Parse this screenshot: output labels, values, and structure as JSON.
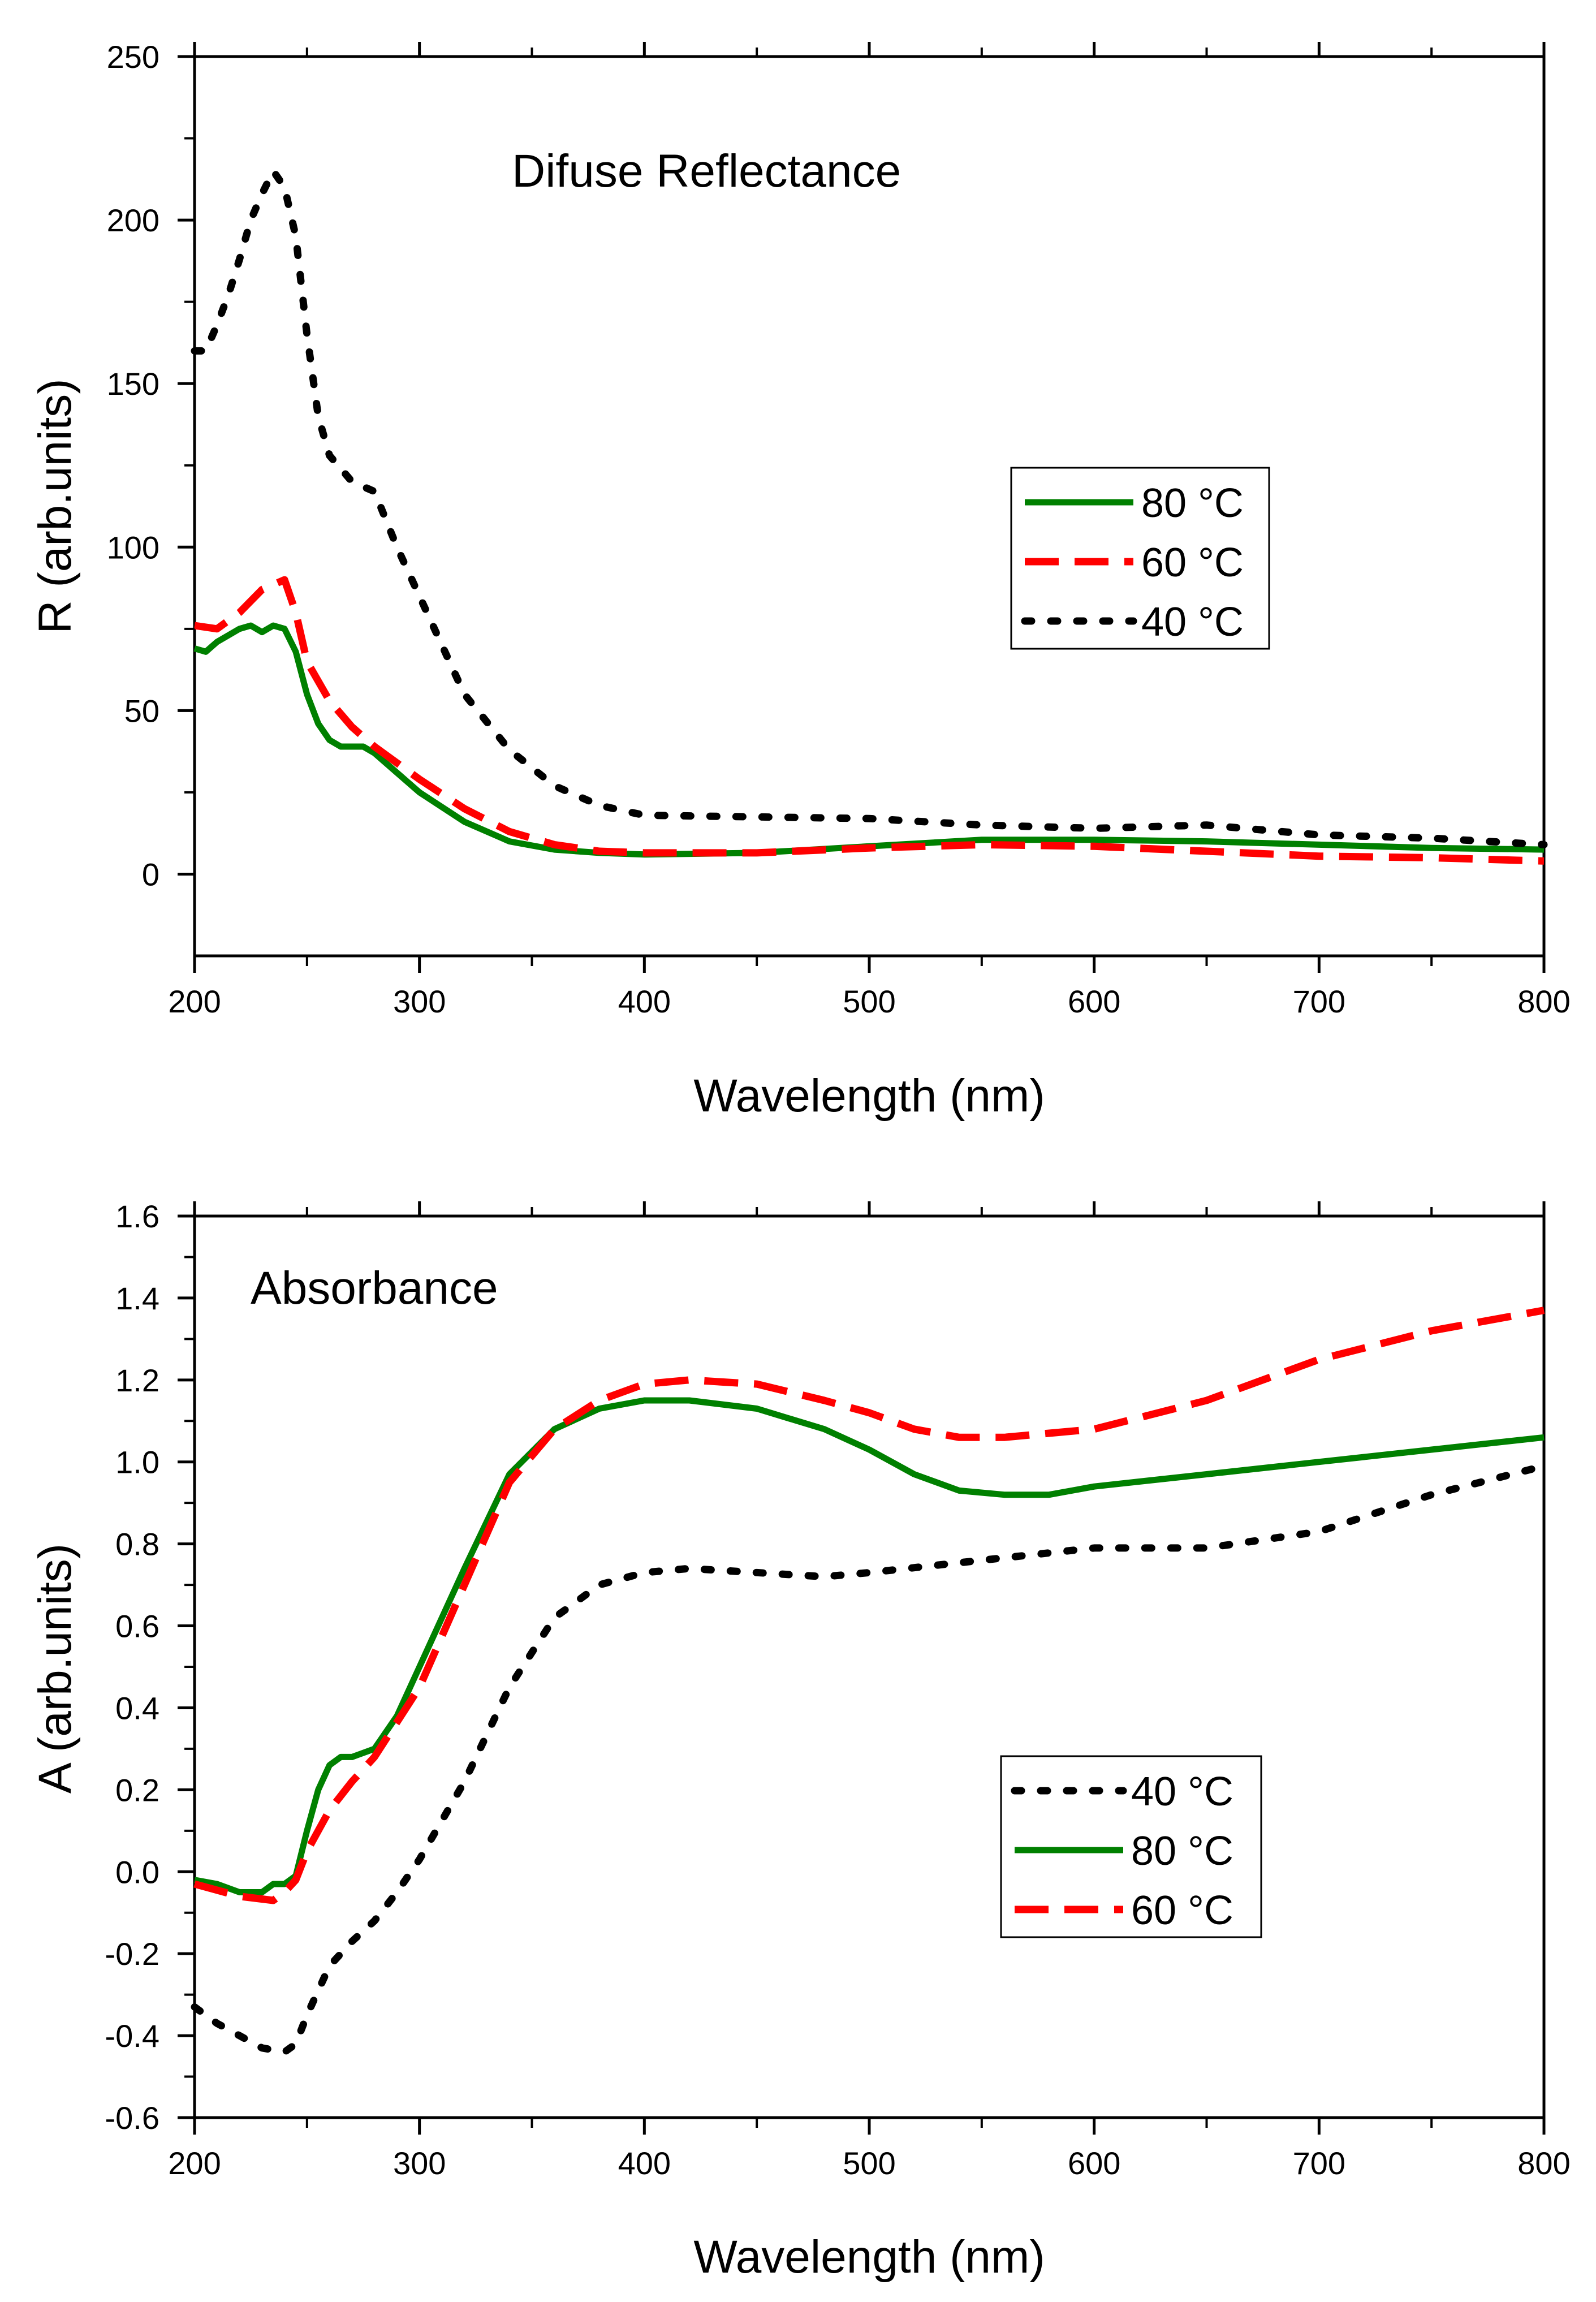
{
  "chart_data": [
    {
      "type": "line",
      "title": "Difuse Reflectance",
      "xlabel": "Wavelength (nm)",
      "ylabel": "R (arb.units)",
      "xlim": [
        200,
        800
      ],
      "ylim": [
        -25,
        250
      ],
      "xticks": [
        "200",
        "300",
        "400",
        "500",
        "600",
        "700",
        "800"
      ],
      "xtick_values": [
        200,
        300,
        400,
        500,
        600,
        700,
        800
      ],
      "yticks": [
        "0",
        "50",
        "100",
        "150",
        "200",
        "250"
      ],
      "ytick_values": [
        0,
        50,
        100,
        150,
        200,
        250
      ],
      "legend_position": "right-middle",
      "legend_order": [
        0,
        1,
        2
      ],
      "series": [
        {
          "name": "80 °C",
          "color": "#008000",
          "style": "solid",
          "x": [
            200,
            205,
            210,
            215,
            220,
            225,
            230,
            235,
            240,
            245,
            250,
            255,
            260,
            265,
            270,
            275,
            280,
            290,
            300,
            320,
            340,
            360,
            380,
            400,
            450,
            500,
            550,
            600,
            650,
            700,
            750,
            800
          ],
          "y": [
            69,
            68,
            71,
            73,
            75,
            76,
            74,
            76,
            75,
            68,
            55,
            46,
            41,
            39,
            39,
            39,
            37,
            31,
            25,
            16,
            10,
            7.5,
            6.5,
            6,
            6.5,
            8.5,
            10.5,
            10.5,
            10,
            9,
            8,
            7.5
          ]
        },
        {
          "name": "60 °C",
          "color": "#ff0000",
          "style": "dashed",
          "x": [
            200,
            210,
            220,
            230,
            240,
            245,
            250,
            260,
            270,
            280,
            300,
            320,
            340,
            360,
            380,
            400,
            450,
            500,
            550,
            600,
            650,
            700,
            750,
            800
          ],
          "y": [
            76,
            75,
            80,
            87,
            90,
            80,
            65,
            53,
            45,
            39,
            29,
            20,
            13,
            9,
            7,
            6.5,
            6.5,
            8,
            9,
            8.5,
            7,
            5.5,
            5,
            4
          ]
        },
        {
          "name": "40 °C",
          "color": "#000000",
          "style": "dotted",
          "x": [
            200,
            205,
            210,
            215,
            220,
            225,
            230,
            235,
            240,
            245,
            250,
            255,
            260,
            265,
            270,
            280,
            290,
            300,
            310,
            320,
            340,
            360,
            380,
            400,
            450,
            500,
            550,
            600,
            650,
            700,
            750,
            800
          ],
          "y": [
            160,
            160,
            168,
            177,
            188,
            200,
            208,
            215,
            210,
            195,
            165,
            140,
            128,
            124,
            120,
            117,
            100,
            85,
            70,
            55,
            38,
            27,
            21,
            18,
            17.5,
            17,
            15,
            14,
            15,
            12,
            11,
            9
          ]
        }
      ]
    },
    {
      "type": "line",
      "title": "Absorbance",
      "xlabel": "Wavelength (nm)",
      "ylabel": "A (arb.units)",
      "xlim": [
        200,
        800
      ],
      "ylim": [
        -0.6,
        1.6
      ],
      "xticks": [
        "200",
        "300",
        "400",
        "500",
        "600",
        "700",
        "800"
      ],
      "xtick_values": [
        200,
        300,
        400,
        500,
        600,
        700,
        800
      ],
      "yticks": [
        "-0.6",
        "-0.4",
        "-0.2",
        "0.0",
        "0.2",
        "0.4",
        "0.6",
        "0.8",
        "1.0",
        "1.2",
        "1.4",
        "1.6"
      ],
      "ytick_values": [
        -0.6,
        -0.4,
        -0.2,
        0.0,
        0.2,
        0.4,
        0.6,
        0.8,
        1.0,
        1.2,
        1.4,
        1.6
      ],
      "legend_position": "right-lower",
      "legend_order": [
        2,
        0,
        1
      ],
      "series": [
        {
          "name": "80 °C",
          "color": "#008000",
          "style": "solid",
          "x": [
            200,
            210,
            220,
            230,
            235,
            240,
            245,
            250,
            255,
            260,
            265,
            270,
            280,
            290,
            300,
            320,
            340,
            360,
            380,
            400,
            420,
            450,
            480,
            500,
            520,
            540,
            560,
            580,
            600,
            650,
            700,
            750,
            800
          ],
          "y": [
            -0.02,
            -0.03,
            -0.05,
            -0.05,
            -0.03,
            -0.03,
            -0.01,
            0.1,
            0.2,
            0.26,
            0.28,
            0.28,
            0.3,
            0.38,
            0.5,
            0.74,
            0.97,
            1.08,
            1.13,
            1.15,
            1.15,
            1.13,
            1.08,
            1.03,
            0.97,
            0.93,
            0.92,
            0.92,
            0.94,
            0.97,
            1.0,
            1.03,
            1.06
          ]
        },
        {
          "name": "60 °C",
          "color": "#ff0000",
          "style": "dashed",
          "x": [
            200,
            220,
            235,
            240,
            245,
            250,
            260,
            270,
            280,
            300,
            320,
            340,
            360,
            380,
            400,
            420,
            450,
            480,
            500,
            520,
            540,
            560,
            580,
            600,
            650,
            700,
            750,
            800
          ],
          "y": [
            -0.03,
            -0.06,
            -0.07,
            -0.05,
            -0.02,
            0.05,
            0.15,
            0.22,
            0.28,
            0.45,
            0.7,
            0.95,
            1.08,
            1.15,
            1.19,
            1.2,
            1.19,
            1.15,
            1.12,
            1.08,
            1.06,
            1.06,
            1.07,
            1.08,
            1.15,
            1.25,
            1.32,
            1.37
          ]
        },
        {
          "name": "40 °C",
          "color": "#000000",
          "style": "dotted",
          "x": [
            200,
            210,
            220,
            230,
            240,
            245,
            250,
            260,
            270,
            280,
            290,
            300,
            320,
            340,
            360,
            380,
            400,
            420,
            450,
            480,
            500,
            550,
            600,
            650,
            700,
            750,
            800
          ],
          "y": [
            -0.33,
            -0.37,
            -0.4,
            -0.43,
            -0.44,
            -0.42,
            -0.35,
            -0.23,
            -0.17,
            -0.12,
            -0.05,
            0.03,
            0.22,
            0.45,
            0.62,
            0.7,
            0.73,
            0.74,
            0.73,
            0.72,
            0.73,
            0.76,
            0.79,
            0.79,
            0.83,
            0.92,
            0.99
          ]
        }
      ]
    }
  ]
}
